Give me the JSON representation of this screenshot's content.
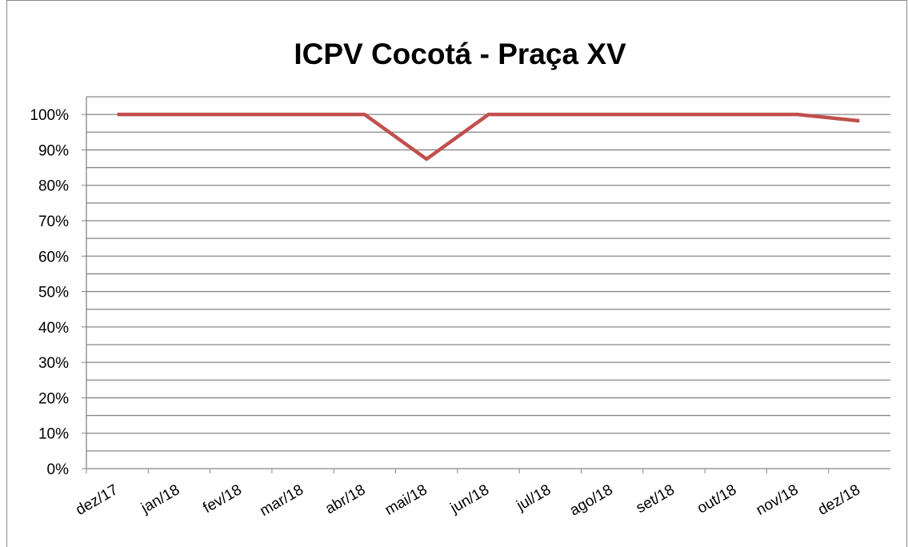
{
  "chart_data": {
    "type": "line",
    "title": "ICPV  Cocotá - Praça XV",
    "categories": [
      "dez/17",
      "jan/18",
      "fev/18",
      "mar/18",
      "abr/18",
      "mai/18",
      "jun/18",
      "jul/18",
      "ago/18",
      "set/18",
      "out/18",
      "nov/18",
      "dez/18"
    ],
    "series": [
      {
        "name": "ICPV",
        "color": "#c0504d",
        "values": [
          100,
          100,
          100,
          100,
          100,
          87.4,
          100,
          100,
          100,
          100,
          100,
          100,
          98.2
        ]
      }
    ],
    "ylim": [
      0,
      105
    ],
    "yticks": [
      {
        "value": 0,
        "label": "0%"
      },
      {
        "value": 10,
        "label": "10%"
      },
      {
        "value": 20,
        "label": "20%"
      },
      {
        "value": 30,
        "label": "30%"
      },
      {
        "value": 40,
        "label": "40%"
      },
      {
        "value": 50,
        "label": "50%"
      },
      {
        "value": 60,
        "label": "60%"
      },
      {
        "value": 70,
        "label": "70%"
      },
      {
        "value": 80,
        "label": "80%"
      },
      {
        "value": 90,
        "label": "90%"
      },
      {
        "value": 100,
        "label": "100%"
      }
    ],
    "grid": true,
    "legend": false
  }
}
